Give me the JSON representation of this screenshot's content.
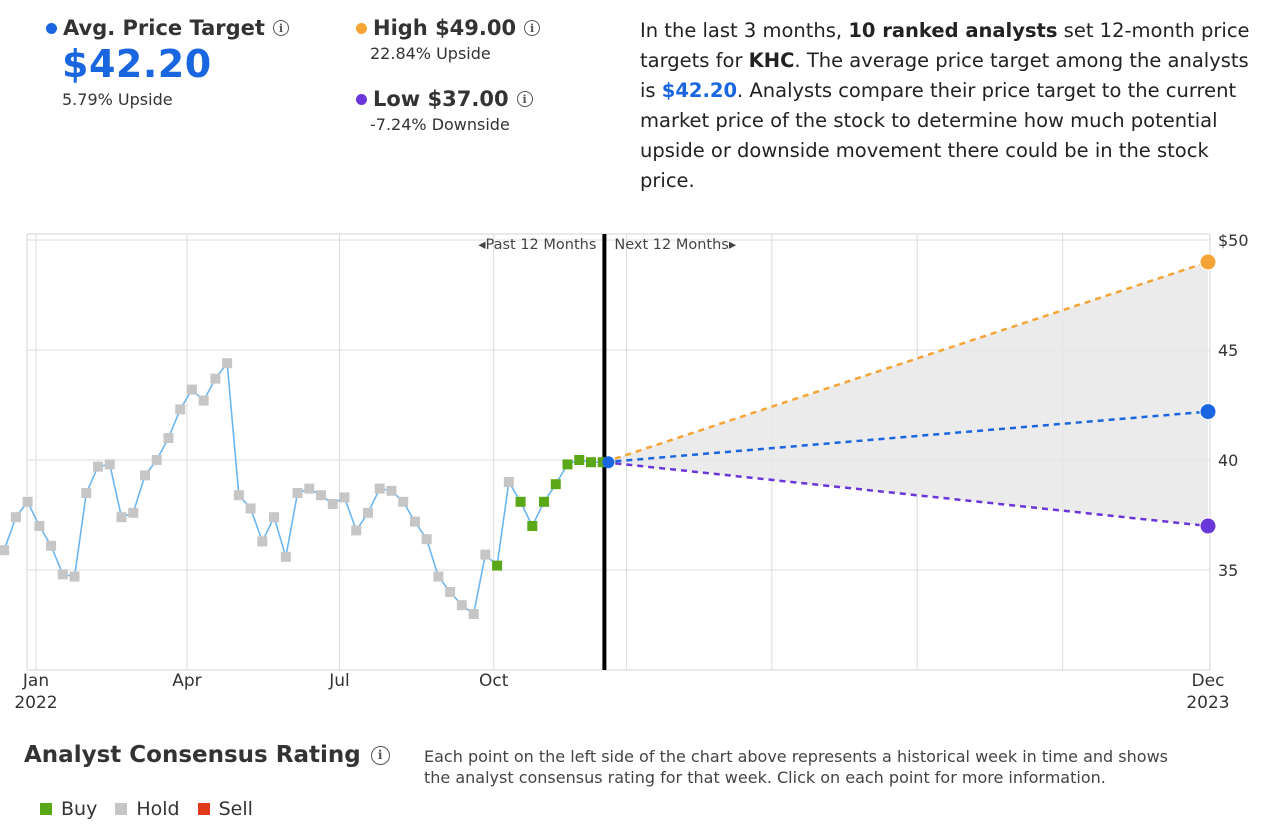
{
  "avg": {
    "label": "Avg. Price Target",
    "value": "$42.20",
    "change": "5.79% Upside",
    "color": "#1a66e0"
  },
  "high": {
    "label": "High $49.00",
    "change": "22.84% Upside",
    "color": "#f5a435"
  },
  "low": {
    "label": "Low $37.00",
    "change": "-7.24% Downside",
    "color": "#6a35d9"
  },
  "description": {
    "p1": "In the last 3 months, ",
    "b1": "10 ranked analysts",
    "p2": " set 12-month price targets for ",
    "b2": "KHC",
    "p3": ". The average price target among the analysts is ",
    "b3": "$42.20",
    "p4": ". Analysts compare their price target to the current market price of the stock to determine how much potential upside or downside movement there could be in the stock price."
  },
  "chart_data": {
    "type": "line",
    "past_label": "Past 12 Months",
    "next_label": "Next 12 Months",
    "y_ticks": [
      "$50",
      "45",
      "40",
      "35"
    ],
    "y_tick_values": [
      50,
      45,
      40,
      35
    ],
    "ylim": [
      30,
      50.5
    ],
    "x_labels": [
      {
        "month": "Jan",
        "year": "2022",
        "date": "2022-01-01"
      },
      {
        "month": "Apr",
        "year": "",
        "date": "2022-04-01"
      },
      {
        "month": "Jul",
        "year": "",
        "date": "2022-07-01"
      },
      {
        "month": "Oct",
        "year": "",
        "date": "2022-10-01"
      },
      {
        "month": "Dec",
        "year": "2023",
        "date": "2023-12-01"
      }
    ],
    "divider_date": "2022-12-06",
    "history": [
      {
        "date": "2021-12-13",
        "price": 35.9,
        "rating": "Hold"
      },
      {
        "date": "2021-12-20",
        "price": 37.4,
        "rating": "Hold"
      },
      {
        "date": "2021-12-27",
        "price": 38.1,
        "rating": "Hold"
      },
      {
        "date": "2022-01-03",
        "price": 37.0,
        "rating": "Hold"
      },
      {
        "date": "2022-01-10",
        "price": 36.1,
        "rating": "Hold"
      },
      {
        "date": "2022-01-17",
        "price": 34.8,
        "rating": "Hold"
      },
      {
        "date": "2022-01-24",
        "price": 34.7,
        "rating": "Hold"
      },
      {
        "date": "2022-01-31",
        "price": 38.5,
        "rating": "Hold"
      },
      {
        "date": "2022-02-07",
        "price": 39.7,
        "rating": "Hold"
      },
      {
        "date": "2022-02-14",
        "price": 39.8,
        "rating": "Hold"
      },
      {
        "date": "2022-02-21",
        "price": 37.4,
        "rating": "Hold"
      },
      {
        "date": "2022-02-28",
        "price": 37.6,
        "rating": "Hold"
      },
      {
        "date": "2022-03-07",
        "price": 39.3,
        "rating": "Hold"
      },
      {
        "date": "2022-03-14",
        "price": 40.0,
        "rating": "Hold"
      },
      {
        "date": "2022-03-21",
        "price": 41.0,
        "rating": "Hold"
      },
      {
        "date": "2022-03-28",
        "price": 42.3,
        "rating": "Hold"
      },
      {
        "date": "2022-04-04",
        "price": 43.2,
        "rating": "Hold"
      },
      {
        "date": "2022-04-11",
        "price": 42.7,
        "rating": "Hold"
      },
      {
        "date": "2022-04-18",
        "price": 43.7,
        "rating": "Hold"
      },
      {
        "date": "2022-04-25",
        "price": 44.4,
        "rating": "Hold"
      },
      {
        "date": "2022-05-02",
        "price": 38.4,
        "rating": "Hold"
      },
      {
        "date": "2022-05-09",
        "price": 37.8,
        "rating": "Hold"
      },
      {
        "date": "2022-05-16",
        "price": 36.3,
        "rating": "Hold"
      },
      {
        "date": "2022-05-23",
        "price": 37.4,
        "rating": "Hold"
      },
      {
        "date": "2022-05-30",
        "price": 35.6,
        "rating": "Hold"
      },
      {
        "date": "2022-06-06",
        "price": 38.5,
        "rating": "Hold"
      },
      {
        "date": "2022-06-13",
        "price": 38.7,
        "rating": "Hold"
      },
      {
        "date": "2022-06-20",
        "price": 38.4,
        "rating": "Hold"
      },
      {
        "date": "2022-06-27",
        "price": 38.0,
        "rating": "Hold"
      },
      {
        "date": "2022-07-04",
        "price": 38.3,
        "rating": "Hold"
      },
      {
        "date": "2022-07-11",
        "price": 36.8,
        "rating": "Hold"
      },
      {
        "date": "2022-07-18",
        "price": 37.6,
        "rating": "Hold"
      },
      {
        "date": "2022-07-25",
        "price": 38.7,
        "rating": "Hold"
      },
      {
        "date": "2022-08-01",
        "price": 38.6,
        "rating": "Hold"
      },
      {
        "date": "2022-08-08",
        "price": 38.1,
        "rating": "Hold"
      },
      {
        "date": "2022-08-15",
        "price": 37.2,
        "rating": "Hold"
      },
      {
        "date": "2022-08-22",
        "price": 36.4,
        "rating": "Hold"
      },
      {
        "date": "2022-08-29",
        "price": 34.7,
        "rating": "Hold"
      },
      {
        "date": "2022-09-05",
        "price": 34.0,
        "rating": "Hold"
      },
      {
        "date": "2022-09-12",
        "price": 33.4,
        "rating": "Hold"
      },
      {
        "date": "2022-09-19",
        "price": 33.0,
        "rating": "Hold"
      },
      {
        "date": "2022-09-26",
        "price": 35.7,
        "rating": "Hold"
      },
      {
        "date": "2022-10-03",
        "price": 35.2,
        "rating": "Buy"
      },
      {
        "date": "2022-10-10",
        "price": 39.0,
        "rating": "Hold"
      },
      {
        "date": "2022-10-17",
        "price": 38.1,
        "rating": "Buy"
      },
      {
        "date": "2022-10-24",
        "price": 37.0,
        "rating": "Buy"
      },
      {
        "date": "2022-10-31",
        "price": 38.1,
        "rating": "Buy"
      },
      {
        "date": "2022-11-07",
        "price": 38.9,
        "rating": "Buy"
      },
      {
        "date": "2022-11-14",
        "price": 39.8,
        "rating": "Buy"
      },
      {
        "date": "2022-11-21",
        "price": 40.0,
        "rating": "Buy"
      },
      {
        "date": "2022-11-28",
        "price": 39.9,
        "rating": "Buy"
      },
      {
        "date": "2022-12-05",
        "price": 39.9,
        "rating": "Buy"
      }
    ],
    "projection": {
      "start_date": "2022-12-06",
      "start_value": 39.9,
      "end_date": "2023-12-01",
      "high": 49.0,
      "avg": 42.2,
      "low": 37.0
    },
    "rating_colors": {
      "Buy": "#5aa817",
      "Hold": "#c6c6c6",
      "Sell": "#e03a1c"
    },
    "line_color": "#6bb6f0"
  },
  "rating": {
    "title": "Analyst Consensus Rating",
    "description": "Each point on the left side of the chart above represents a historical week in time and shows the analyst consensus rating for that week. Click on each point for more information.",
    "legend": [
      {
        "label": "Buy",
        "color": "#5aa817"
      },
      {
        "label": "Hold",
        "color": "#c6c6c6"
      },
      {
        "label": "Sell",
        "color": "#e03a1c"
      }
    ]
  }
}
